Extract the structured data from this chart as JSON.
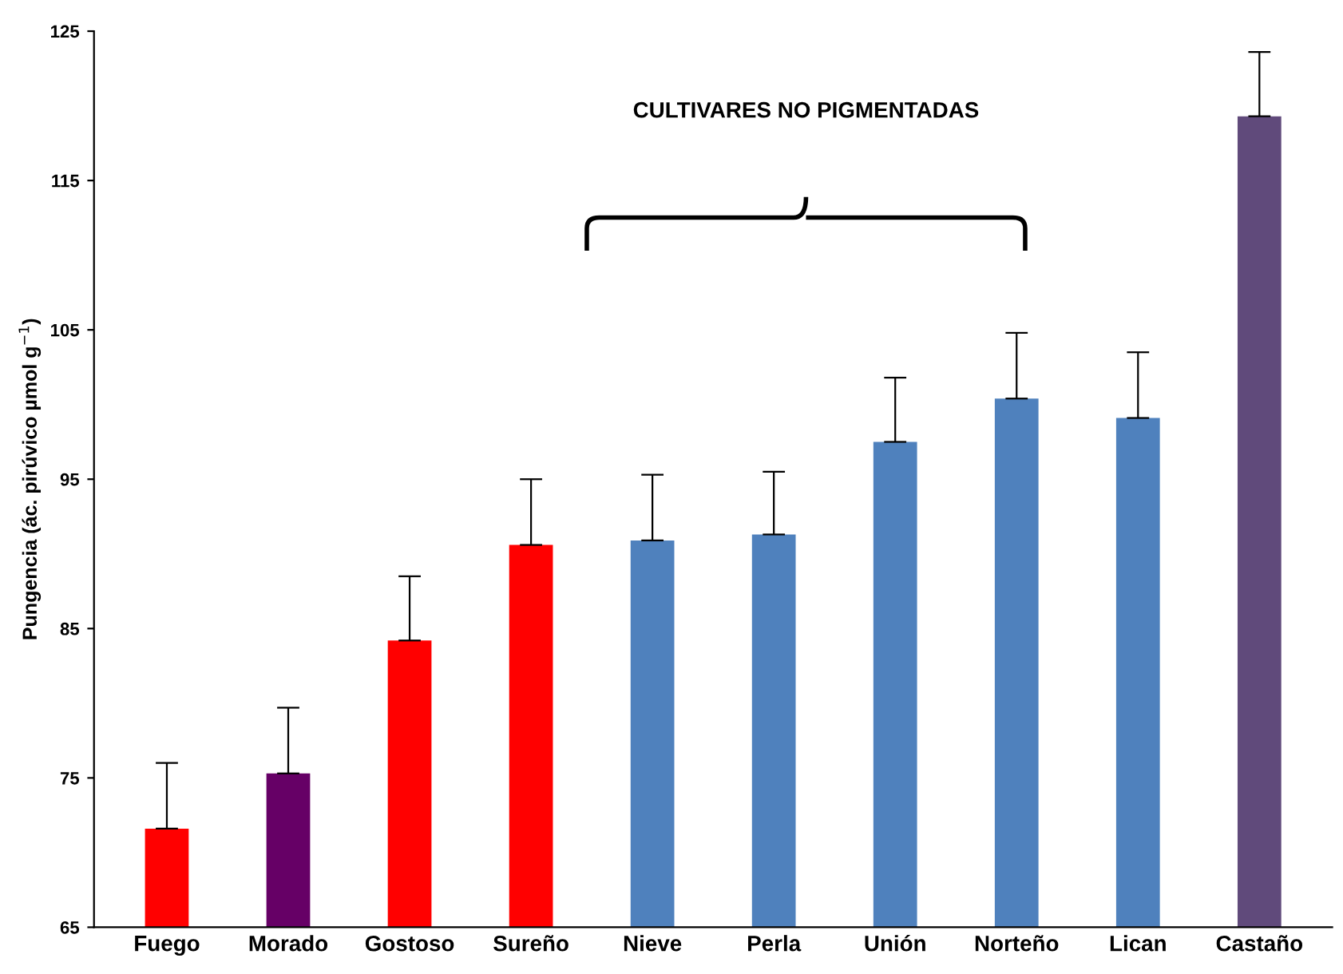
{
  "chart_data": {
    "type": "bar",
    "ylabel": "Pungencia (ác. pirúvico µmol g$^{−1}$)",
    "categories": [
      "Fuego",
      "Morado",
      "Gostoso",
      "Sureño",
      "Nieve",
      "Perla",
      "Unión",
      "Norteño",
      "Lican",
      "Castaño"
    ],
    "values": [
      71.6,
      75.3,
      84.2,
      90.6,
      90.9,
      91.3,
      97.5,
      100.4,
      99.1,
      119.3
    ],
    "errors": [
      [
        71.6,
        76.0
      ],
      [
        75.3,
        79.7
      ],
      [
        84.2,
        88.5
      ],
      [
        90.6,
        95.0
      ],
      [
        90.9,
        95.3
      ],
      [
        91.3,
        95.5
      ],
      [
        97.5,
        101.8
      ],
      [
        100.4,
        104.8
      ],
      [
        99.1,
        103.5
      ],
      [
        119.3,
        123.6
      ]
    ],
    "colors": [
      "#ff0000",
      "#660066",
      "#ff0000",
      "#ff0000",
      "#4f81bd",
      "#4f81bd",
      "#4f81bd",
      "#4f81bd",
      "#4f81bd",
      "#604a7b"
    ],
    "ylim": [
      65,
      125
    ],
    "yticks": [
      65,
      75,
      85,
      95,
      105,
      115,
      125
    ],
    "grid": false,
    "annotations": [
      "CULTIVARES NO PIGMENTADAS"
    ]
  }
}
